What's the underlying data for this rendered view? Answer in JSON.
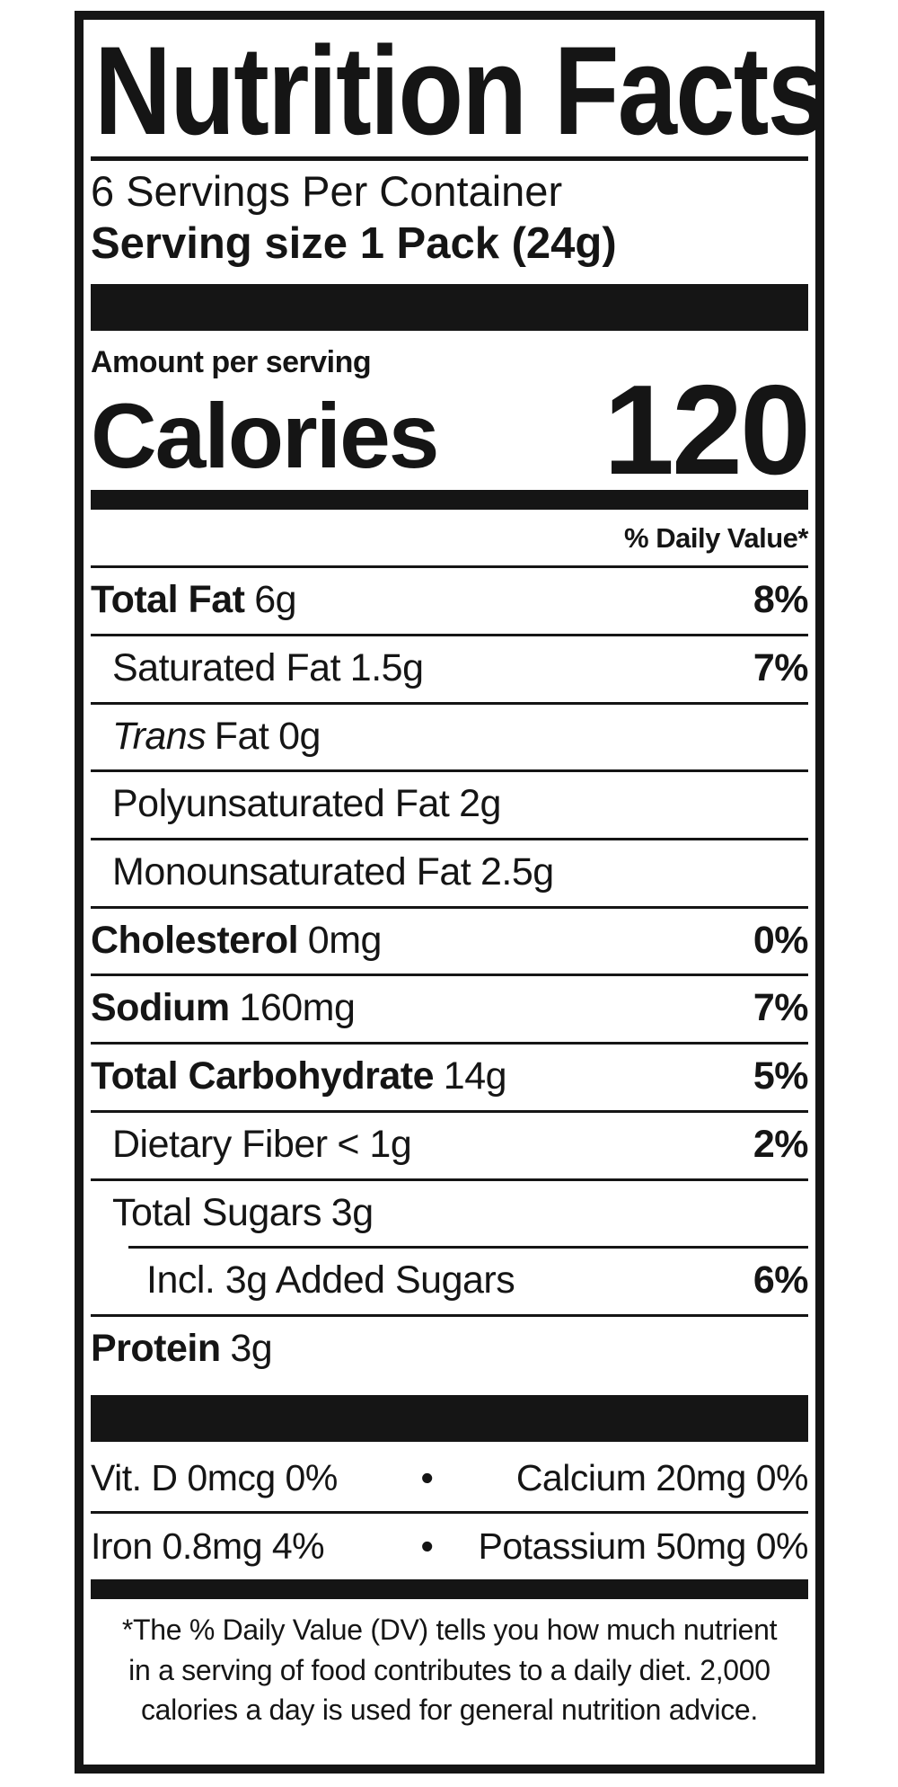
{
  "colors": {
    "text": "#151515",
    "background": "#ffffff"
  },
  "title": "Nutrition Facts",
  "servings_per_container": "6 Servings Per Container",
  "serving_size": {
    "label": "Serving size",
    "value": "1 Pack (24g)"
  },
  "calories": {
    "header": "Amount per serving",
    "label": "Calories",
    "value": "120"
  },
  "daily_value_header": "% Daily Value*",
  "nutrients": [
    {
      "name": "Total Fat",
      "amount": "6g",
      "dv": "8%",
      "emphasis": "bold",
      "indent": 0
    },
    {
      "name": "Saturated Fat",
      "amount": "1.5g",
      "dv": "7%",
      "emphasis": "regular",
      "indent": 1
    },
    {
      "italic": "Trans",
      "name": "Fat",
      "amount": "0g",
      "dv": "",
      "emphasis": "regular",
      "indent": 1
    },
    {
      "name": "Polyunsaturated Fat",
      "amount": "2g",
      "dv": "",
      "emphasis": "regular",
      "indent": 1
    },
    {
      "name": "Monounsaturated Fat",
      "amount": "2.5g",
      "dv": "",
      "emphasis": "regular",
      "indent": 1
    },
    {
      "name": "Cholesterol",
      "amount": "0mg",
      "dv": "0%",
      "emphasis": "bold",
      "indent": 0
    },
    {
      "name": "Sodium",
      "amount": "160mg",
      "dv": "7%",
      "emphasis": "bold",
      "indent": 0
    },
    {
      "name": "Total Carbohydrate",
      "amount": "14g",
      "dv": "5%",
      "emphasis": "bold",
      "indent": 0
    },
    {
      "name": "Dietary Fiber",
      "amount": "< 1g",
      "dv": "2%",
      "emphasis": "regular",
      "indent": 1
    },
    {
      "name": "Total Sugars",
      "amount": "3g",
      "dv": "",
      "emphasis": "regular",
      "indent": 1
    },
    {
      "name": "Incl. 3g Added Sugars",
      "amount": "",
      "dv": "6%",
      "emphasis": "regular",
      "indent": 2
    },
    {
      "name": "Protein",
      "amount": "3g",
      "dv": "",
      "emphasis": "bold",
      "indent": 0
    }
  ],
  "micronutrient_rows": [
    {
      "left": "Vit. D 0mcg 0%",
      "bullet": "•",
      "right": "Calcium 20mg 0%"
    },
    {
      "left": "Iron 0.8mg 4%",
      "bullet": "•",
      "right": "Potassium 50mg 0%"
    }
  ],
  "footnote_lines": [
    "*The % Daily Value (DV) tells you how much nutrient",
    "in a serving of food contributes to a daily diet. 2,000",
    "calories a day is used for general nutrition advice."
  ]
}
